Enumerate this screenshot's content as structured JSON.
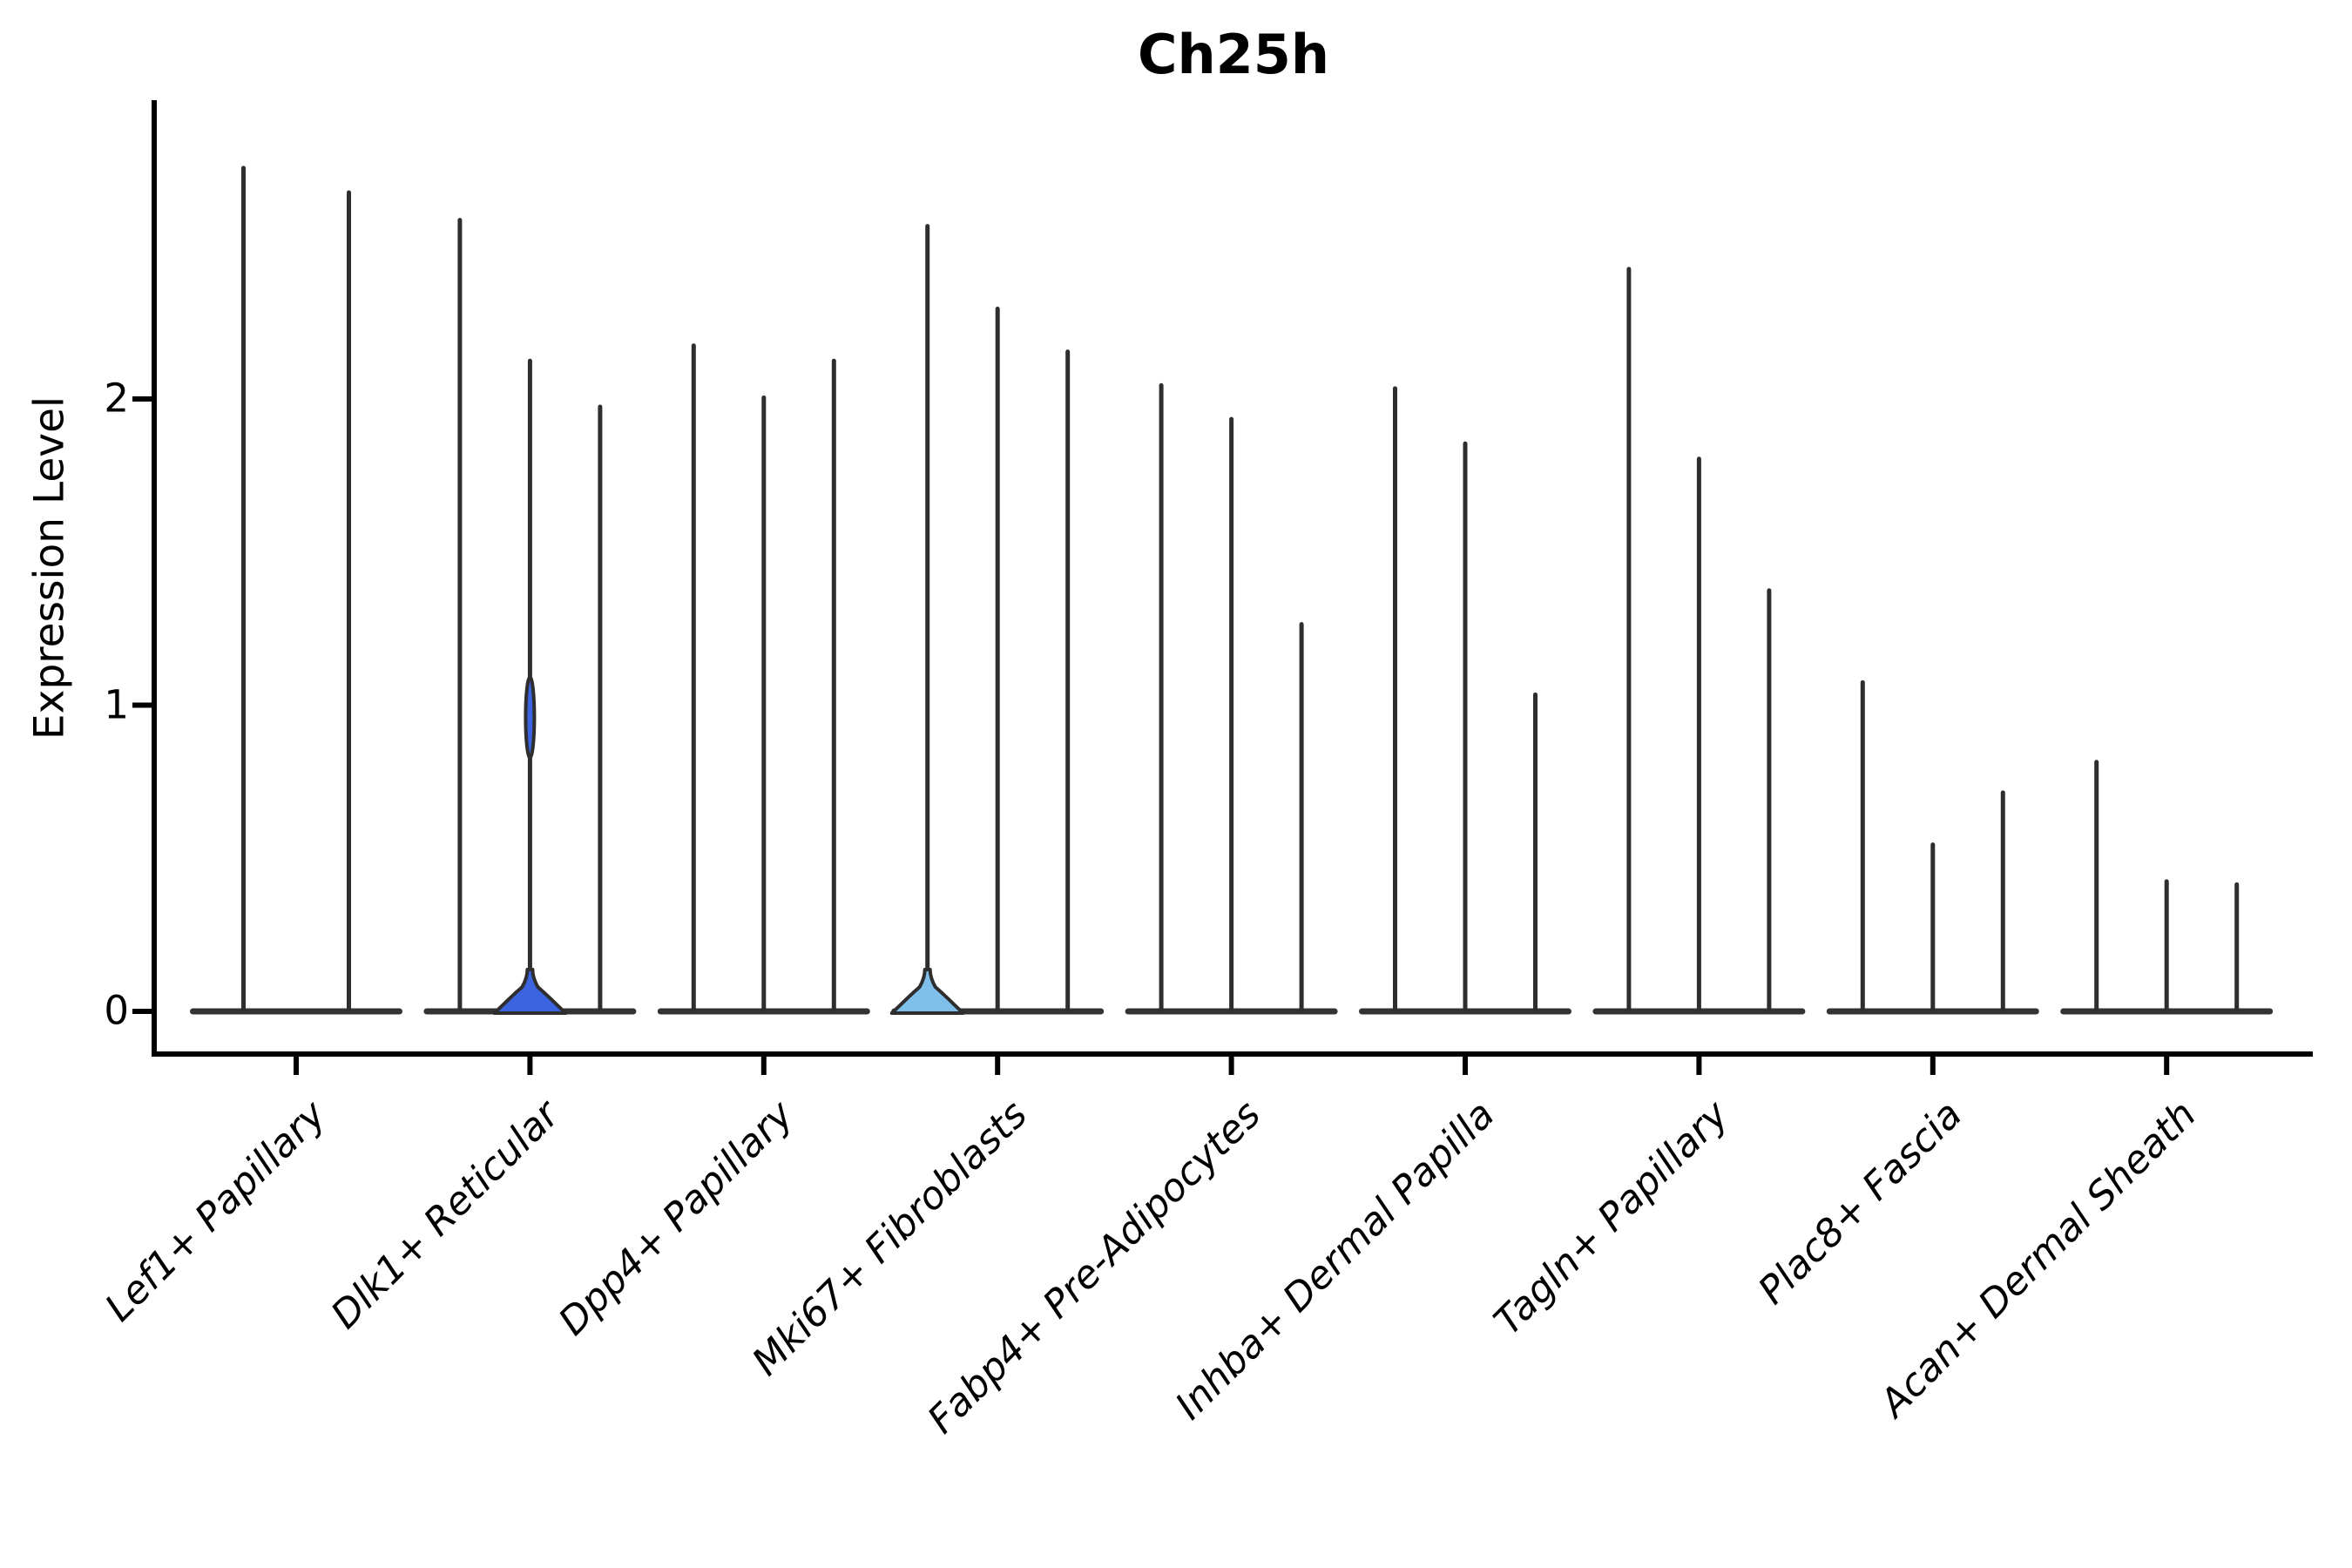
{
  "chart_data": {
    "type": "violin",
    "title": "Ch25h",
    "ylabel": "Expression Level",
    "yticks": [
      0,
      1,
      2
    ],
    "ytick_labels": [
      "0",
      "1",
      "2"
    ],
    "ylim": [
      -0.14,
      2.97
    ],
    "grid": false,
    "legend": false,
    "colors": {
      "edge": "#2e2e2e",
      "baseline_band": "#333333",
      "highlight_blue": "#3c64e0",
      "highlight_lightblue": "#7ec0ea"
    },
    "groups": [
      {
        "label": "Lef1+ Papillary",
        "violins": [
          {
            "max": 2.76
          },
          {
            "max": 2.68
          }
        ]
      },
      {
        "label": "Dlk1+ Reticular",
        "violins": [
          {
            "max": 2.59
          },
          {
            "max": 2.13,
            "fill": "#3c64e0",
            "bulge": 0.96
          },
          {
            "max": 1.98
          }
        ]
      },
      {
        "label": "Dpp4+ Papillary",
        "violins": [
          {
            "max": 2.18
          },
          {
            "max": 2.01
          },
          {
            "max": 2.13
          }
        ]
      },
      {
        "label": "Mki67+ Fibroblasts",
        "violins": [
          {
            "max": 2.57,
            "fill": "#7ec0ea"
          },
          {
            "max": 2.3
          },
          {
            "max": 2.16
          }
        ]
      },
      {
        "label": "Fabp4+ Pre-Adipocytes",
        "violins": [
          {
            "max": 2.05
          },
          {
            "max": 1.94
          },
          {
            "max": 1.27
          }
        ]
      },
      {
        "label": "Inhba+ Dermal Papilla",
        "violins": [
          {
            "max": 2.04
          },
          {
            "max": 1.86
          },
          {
            "max": 1.04
          }
        ]
      },
      {
        "label": "Tagln+ Papillary",
        "violins": [
          {
            "max": 2.43
          },
          {
            "max": 1.81
          },
          {
            "max": 1.38
          }
        ]
      },
      {
        "label": "Plac8+ Fascia",
        "violins": [
          {
            "max": 1.08
          },
          {
            "max": 0.55
          },
          {
            "max": 0.72
          }
        ]
      },
      {
        "label": "Acan+ Dermal Sheath",
        "violins": [
          {
            "max": 0.82
          },
          {
            "max": 0.43
          },
          {
            "max": 0.42
          }
        ]
      }
    ]
  }
}
